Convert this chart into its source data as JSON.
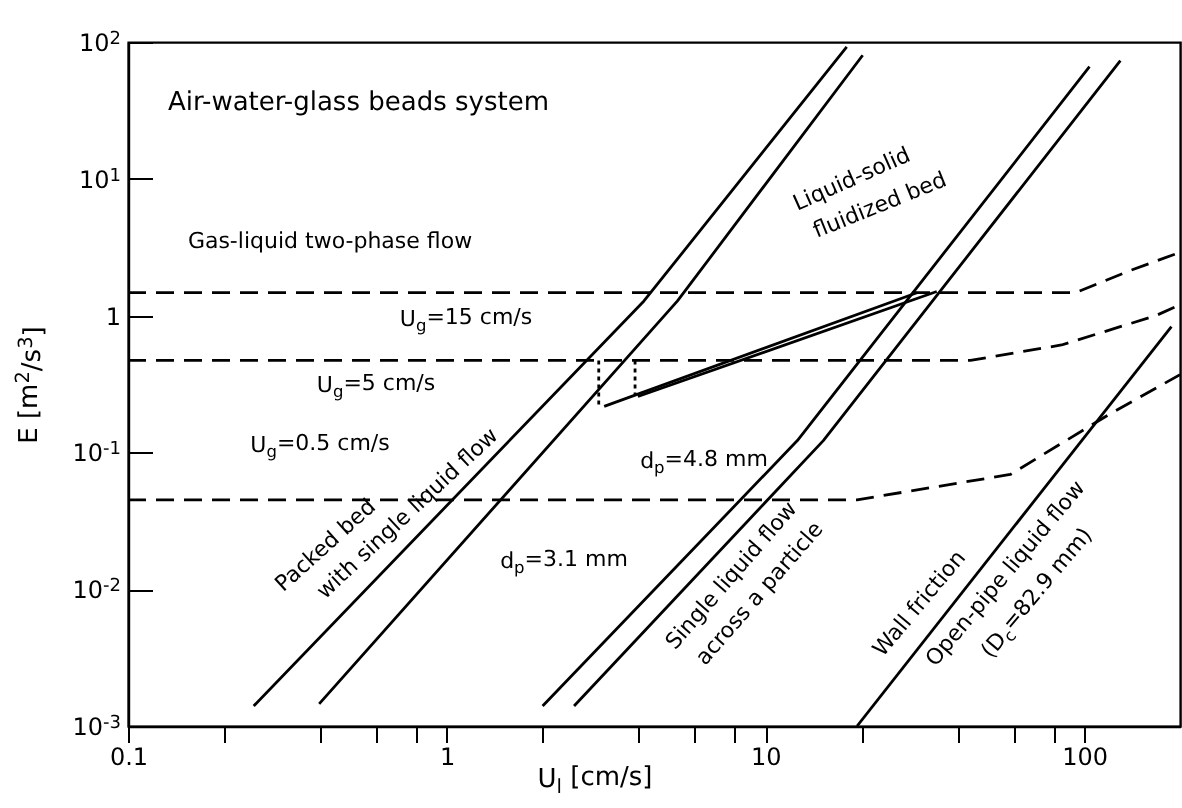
{
  "chart_data": {
    "type": "line",
    "title": "Air-water-glass beads system",
    "xlabel": "U$_{l}$ [cm/s]",
    "ylabel": "E [m$^{2}$/s$^{3}$]",
    "log": "xy",
    "xlim": [
      0.1,
      200
    ],
    "ylim": [
      0.001,
      100
    ],
    "xticks": [
      0.1,
      {
        "value": 0.2,
        "label": null
      },
      {
        "value": 0.4,
        "label": null
      },
      {
        "value": 0.6,
        "label": null
      },
      {
        "value": 0.8,
        "label": null
      },
      1,
      {
        "value": 2,
        "label": null
      },
      {
        "value": 4,
        "label": null
      },
      {
        "value": 6,
        "label": null
      },
      {
        "value": 8,
        "label": null
      },
      10,
      {
        "value": 20,
        "label": null
      },
      {
        "value": 40,
        "label": null
      },
      {
        "value": 60,
        "label": null
      },
      {
        "value": 80,
        "label": null
      },
      100
    ],
    "yticks": [
      {
        "value": 0.001,
        "label": "10$^{-3}$"
      },
      {
        "value": 0.01,
        "label": "10$^{-2}$"
      },
      {
        "value": 0.1,
        "label": "10$^{-1}$"
      },
      1,
      {
        "value": 10,
        "label": "10$^{1}$"
      },
      {
        "value": 100,
        "label": "10$^{2}$"
      }
    ],
    "series": [
      {
        "color": "#000000",
        "line_style": "solid",
        "x": [
          0.248,
          4.16,
          18.0
        ],
        "values": [
          0.0014,
          1.28,
          92
        ]
      },
      {
        "color": "#000000",
        "line_style": "solid",
        "x": [
          0.398,
          5.3,
          20.2
        ],
        "values": [
          0.00145,
          1.28,
          80
        ]
      },
      {
        "color": "#000000",
        "line_style": "solid",
        "x": [
          2.0,
          12.6,
          104
        ],
        "values": [
          0.0014,
          0.122,
          66
        ]
      },
      {
        "color": "#000000",
        "line_style": "solid",
        "x": [
          2.51,
          15.2,
          130
        ],
        "values": [
          0.0014,
          0.122,
          73
        ]
      },
      {
        "color": "#000000",
        "line_style": "solid",
        "x": [
          19.4,
          188
        ],
        "values": [
          0.001,
          0.83
        ]
      },
      {
        "color": "#000000",
        "line_style": "solid",
        "x": [
          3.12,
          29.9
        ],
        "values": [
          0.217,
          1.47
        ]
      },
      {
        "color": "#000000",
        "line_style": "solid",
        "x": [
          3.98,
          34.5
        ],
        "values": [
          0.256,
          1.5
        ]
      },
      {
        "color": "#000000",
        "line_style": "dotted",
        "x": [
          3.0,
          3.0
        ],
        "values": [
          0.47,
          0.22
        ]
      },
      {
        "color": "#000000",
        "line_style": "dotted",
        "x": [
          3.9,
          3.9
        ],
        "values": [
          0.47,
          0.26
        ]
      },
      {
        "color": "#000000",
        "line_style": "dashed",
        "x": [
          0.1,
          94,
          139,
          200
        ],
        "values": [
          1.47,
          1.47,
          2.13,
          2.9
        ]
      },
      {
        "color": "#000000",
        "line_style": "dashed",
        "x": [
          0.1,
          44,
          85,
          168,
          200
        ],
        "values": [
          0.47,
          0.47,
          0.61,
          1.0,
          1.2
        ]
      },
      {
        "color": "#000000",
        "line_style": "dashed",
        "x": [
          0.1,
          19.4,
          58.7,
          120,
          200
        ],
        "values": [
          0.045,
          0.045,
          0.069,
          0.19,
          0.37
        ]
      }
    ],
    "annotations": [
      "Gas-liquid two-phase flow",
      "U$_{g}$=15 cm/s",
      "U$_{g}$=5 cm/s",
      "U$_{g}$=0.5 cm/s",
      "Packed bed",
      "with single liquid flow",
      "d$_{p}$=3.1 mm",
      "d$_{p}$=4.8 mm",
      "Single liquid flow",
      "across a particle",
      "Wall friction",
      "Open-pipe liquid flow",
      "(D$_{c}$=82.9 mm)",
      "Liquid-solid",
      "fluidized bed"
    ]
  }
}
